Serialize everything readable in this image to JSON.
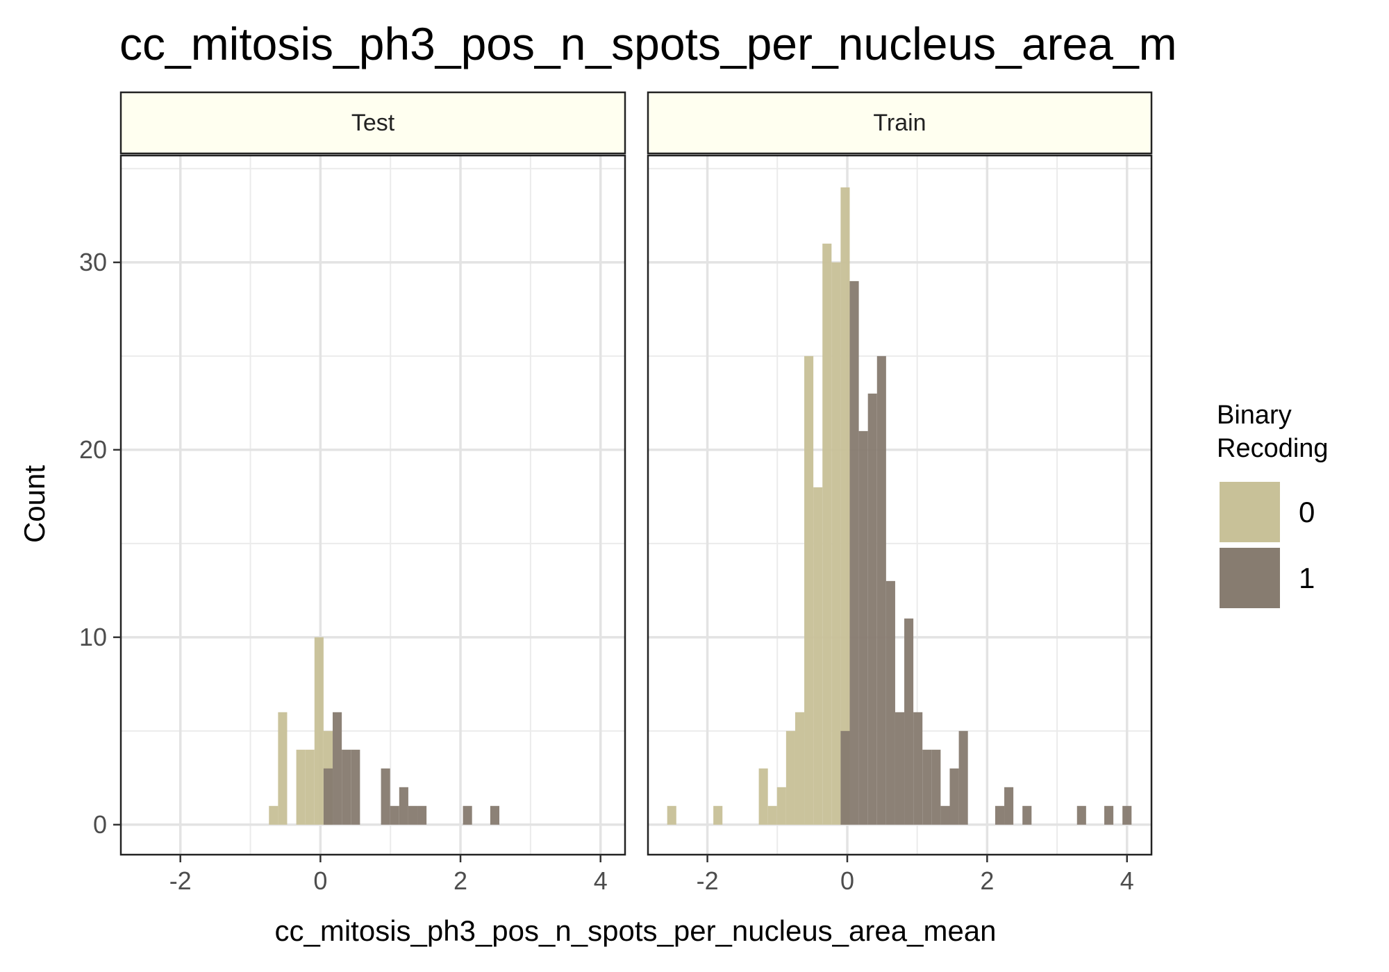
{
  "chart_data": {
    "type": "bar",
    "subtype": "histogram-faceted",
    "title": "cc_mitosis_ph3_pos_n_spots_per_nucleus_area_m",
    "xlabel": "cc_mitosis_ph3_pos_n_spots_per_nucleus_area_mean",
    "ylabel": "Count",
    "xlim": [
      -2.85,
      4.35
    ],
    "ylim": [
      -1.6,
      35.7
    ],
    "x_ticks": [
      -2,
      0,
      2,
      4
    ],
    "y_ticks": [
      0,
      10,
      20,
      30
    ],
    "grid": true,
    "bin_width": 0.13,
    "legend": {
      "title_lines": [
        "Binary",
        "Recoding"
      ],
      "position": "right",
      "entries": [
        {
          "label": "0",
          "color": "#c8c198"
        },
        {
          "label": "1",
          "color": "#877c70"
        }
      ]
    },
    "panels": [
      {
        "name": "Test",
        "series": [
          {
            "name": "0",
            "bins": [
              {
                "x": -0.67,
                "y": 1
              },
              {
                "x": -0.54,
                "y": 6
              },
              {
                "x": -0.28,
                "y": 4
              },
              {
                "x": -0.15,
                "y": 4
              },
              {
                "x": -0.02,
                "y": 10
              },
              {
                "x": 0.11,
                "y": 5
              }
            ]
          },
          {
            "name": "1",
            "bins": [
              {
                "x": 0.11,
                "y": 3
              },
              {
                "x": 0.24,
                "y": 6
              },
              {
                "x": 0.37,
                "y": 4
              },
              {
                "x": 0.5,
                "y": 4
              },
              {
                "x": 0.93,
                "y": 3
              },
              {
                "x": 1.06,
                "y": 1
              },
              {
                "x": 1.19,
                "y": 2
              },
              {
                "x": 1.32,
                "y": 1
              },
              {
                "x": 1.45,
                "y": 1
              },
              {
                "x": 2.1,
                "y": 1
              },
              {
                "x": 2.49,
                "y": 1
              }
            ]
          }
        ]
      },
      {
        "name": "Train",
        "series": [
          {
            "name": "0",
            "bins": [
              {
                "x": -2.51,
                "y": 1
              },
              {
                "x": -1.85,
                "y": 1
              },
              {
                "x": -1.2,
                "y": 3
              },
              {
                "x": -1.07,
                "y": 1
              },
              {
                "x": -0.94,
                "y": 2
              },
              {
                "x": -0.81,
                "y": 5
              },
              {
                "x": -0.68,
                "y": 6
              },
              {
                "x": -0.55,
                "y": 25
              },
              {
                "x": -0.42,
                "y": 18
              },
              {
                "x": -0.29,
                "y": 31
              },
              {
                "x": -0.16,
                "y": 30
              },
              {
                "x": -0.03,
                "y": 34
              }
            ]
          },
          {
            "name": "1",
            "bins": [
              {
                "x": -0.03,
                "y": 5
              },
              {
                "x": 0.1,
                "y": 29
              },
              {
                "x": 0.23,
                "y": 21
              },
              {
                "x": 0.36,
                "y": 23
              },
              {
                "x": 0.49,
                "y": 25
              },
              {
                "x": 0.62,
                "y": 13
              },
              {
                "x": 0.75,
                "y": 6
              },
              {
                "x": 0.88,
                "y": 11
              },
              {
                "x": 1.01,
                "y": 6
              },
              {
                "x": 1.14,
                "y": 4
              },
              {
                "x": 1.27,
                "y": 4
              },
              {
                "x": 1.4,
                "y": 1
              },
              {
                "x": 1.53,
                "y": 3
              },
              {
                "x": 1.66,
                "y": 5
              },
              {
                "x": 2.18,
                "y": 1
              },
              {
                "x": 2.31,
                "y": 2
              },
              {
                "x": 2.57,
                "y": 1
              },
              {
                "x": 3.35,
                "y": 1
              },
              {
                "x": 3.74,
                "y": 1
              },
              {
                "x": 4.0,
                "y": 1
              }
            ]
          }
        ]
      }
    ]
  }
}
